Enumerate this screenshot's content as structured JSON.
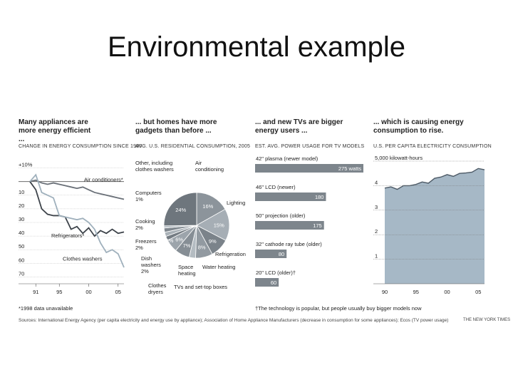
{
  "slide": {
    "title": "Environmental example"
  },
  "chart_data": [
    {
      "type": "line",
      "title": "Many appliances are more energy efficient ...",
      "subtitle": "CHANGE IN ENERGY CONSUMPTION SINCE 1990",
      "ylim": [
        -75,
        15
      ],
      "yticks": [
        "+10%",
        "10",
        "20",
        "30",
        "40",
        "50",
        "60",
        "70"
      ],
      "xticks": [
        "91",
        "95",
        "00",
        "05"
      ],
      "x": [
        1990,
        1991,
        1992,
        1993,
        1994,
        1995,
        1996,
        1997,
        1998,
        1999,
        2000,
        2001,
        2002,
        2003,
        2004,
        2005,
        2006
      ],
      "series": [
        {
          "name": "Air conditioners*",
          "color": "#6a7078",
          "values": [
            0,
            1,
            -1,
            -2,
            -1,
            -2,
            -3,
            -4,
            -5,
            -4,
            -6,
            -8,
            -9,
            -10,
            -11,
            -12,
            -13
          ]
        },
        {
          "name": "Refrigerators*",
          "color": "#3d434a",
          "values": [
            0,
            -6,
            -20,
            -24,
            -25,
            -25,
            -26,
            -35,
            -33,
            -38,
            -34,
            -40,
            -36,
            -38,
            -35,
            -38,
            -37
          ]
        },
        {
          "name": "Clothes washers",
          "color": "#9fb0bc",
          "values": [
            0,
            5,
            -8,
            -10,
            -12,
            -25,
            -26,
            -27,
            -28,
            -27,
            -30,
            -35,
            -45,
            -52,
            -50,
            -53,
            -63
          ]
        }
      ],
      "footnote": "*1998 data unavailable"
    },
    {
      "type": "pie",
      "title": "... but homes have more gadgets than before ...",
      "subtitle": "AVG. U.S. RESIDENTIAL CONSUMPTION, 2005",
      "slices": [
        {
          "label": "Air conditioning",
          "value": 16,
          "pct": "16%"
        },
        {
          "label": "Lighting",
          "value": 15,
          "pct": "15%"
        },
        {
          "label": "Water heating",
          "value": 9,
          "pct": "9%"
        },
        {
          "label": "Refrigeration",
          "value": 8,
          "pct": "8%"
        },
        {
          "label": "TVs and set-top boxes",
          "value": 3,
          "pct": ""
        },
        {
          "label": "Space heating",
          "value": 7,
          "pct": "7%"
        },
        {
          "label": "Clothes dryers",
          "value": 6,
          "pct": "6%"
        },
        {
          "label": "Dish washers 2%",
          "value": 2,
          "pct": ""
        },
        {
          "label": "Freezers 2%",
          "value": 2,
          "pct": ""
        },
        {
          "label": "Cooking 2%",
          "value": 2,
          "pct": ""
        },
        {
          "label": "Computers 1%",
          "value": 1,
          "pct": ""
        },
        {
          "label": "Other, including clothes washers",
          "value": 24,
          "pct": "24%"
        }
      ],
      "extra_pct": "5%"
    },
    {
      "type": "bar",
      "title": "... and new TVs are bigger energy users ...",
      "subtitle": "EST. AVG. POWER USAGE FOR TV MODELS",
      "categories": [
        "42\" plasma (newer model)",
        "46\" LCD (newer)",
        "50\" projection (older)",
        "32\" cathode ray tube (older)",
        "20\" LCD (older)†"
      ],
      "values": [
        275,
        180,
        175,
        80,
        60
      ],
      "value_labels": [
        "275 watts",
        "180",
        "175",
        "80",
        "60"
      ],
      "xlim": [
        0,
        275
      ],
      "footnote": "†The technology is popular, but people usually buy bigger models now"
    },
    {
      "type": "area",
      "title": "... which is causing energy consumption to rise.",
      "subtitle": "U.S. PER CAPITA ELECTRICITY CONSUMPTION",
      "ylabel": "5,000 kilowatt-hours",
      "ylim": [
        0,
        5
      ],
      "yticks": [
        "4",
        "3",
        "2",
        "1"
      ],
      "xticks": [
        "90",
        "95",
        "00",
        "05"
      ],
      "x": [
        1990,
        1991,
        1992,
        1993,
        1994,
        1995,
        1996,
        1997,
        1998,
        1999,
        2000,
        2001,
        2002,
        2003,
        2004,
        2005,
        2006
      ],
      "values": [
        3.9,
        3.95,
        3.85,
        4.0,
        4.0,
        4.05,
        4.15,
        4.1,
        4.3,
        4.35,
        4.45,
        4.38,
        4.5,
        4.52,
        4.55,
        4.7,
        4.65
      ]
    }
  ],
  "source": "Sources: International Energy Agency (per capita electricity and energy use by appliance); Association of Home Appliance Manufacturers (decrease in consumption for some appliances); Ecos (TV power usage)",
  "credit": "THE NEW YORK TIMES"
}
